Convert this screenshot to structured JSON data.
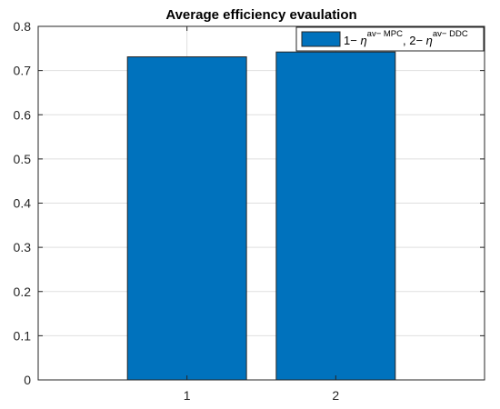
{
  "chart_data": {
    "type": "bar",
    "title": "Average efficiency evaulation",
    "xlabel": "",
    "ylabel": "",
    "categories": [
      "1",
      "2"
    ],
    "x": [
      1,
      2
    ],
    "xlim": [
      0,
      3
    ],
    "ylim": [
      0,
      0.8
    ],
    "yticks": [
      "0",
      "0.1",
      "0.2",
      "0.3",
      "0.4",
      "0.5",
      "0.6",
      "0.7",
      "0.8"
    ],
    "grid": true,
    "legend_position": "top-right",
    "series": [
      {
        "name": "1− η^av− MPC, 2− η^av− DDC",
        "values": [
          0.731,
          0.742
        ],
        "color": "#0072BD"
      }
    ],
    "legend": {
      "p1": "1− ",
      "eta1": "η",
      "sup1": "av− MPC",
      "p2": ", 2− ",
      "eta2": "η",
      "sup2": "av− DDC"
    }
  }
}
